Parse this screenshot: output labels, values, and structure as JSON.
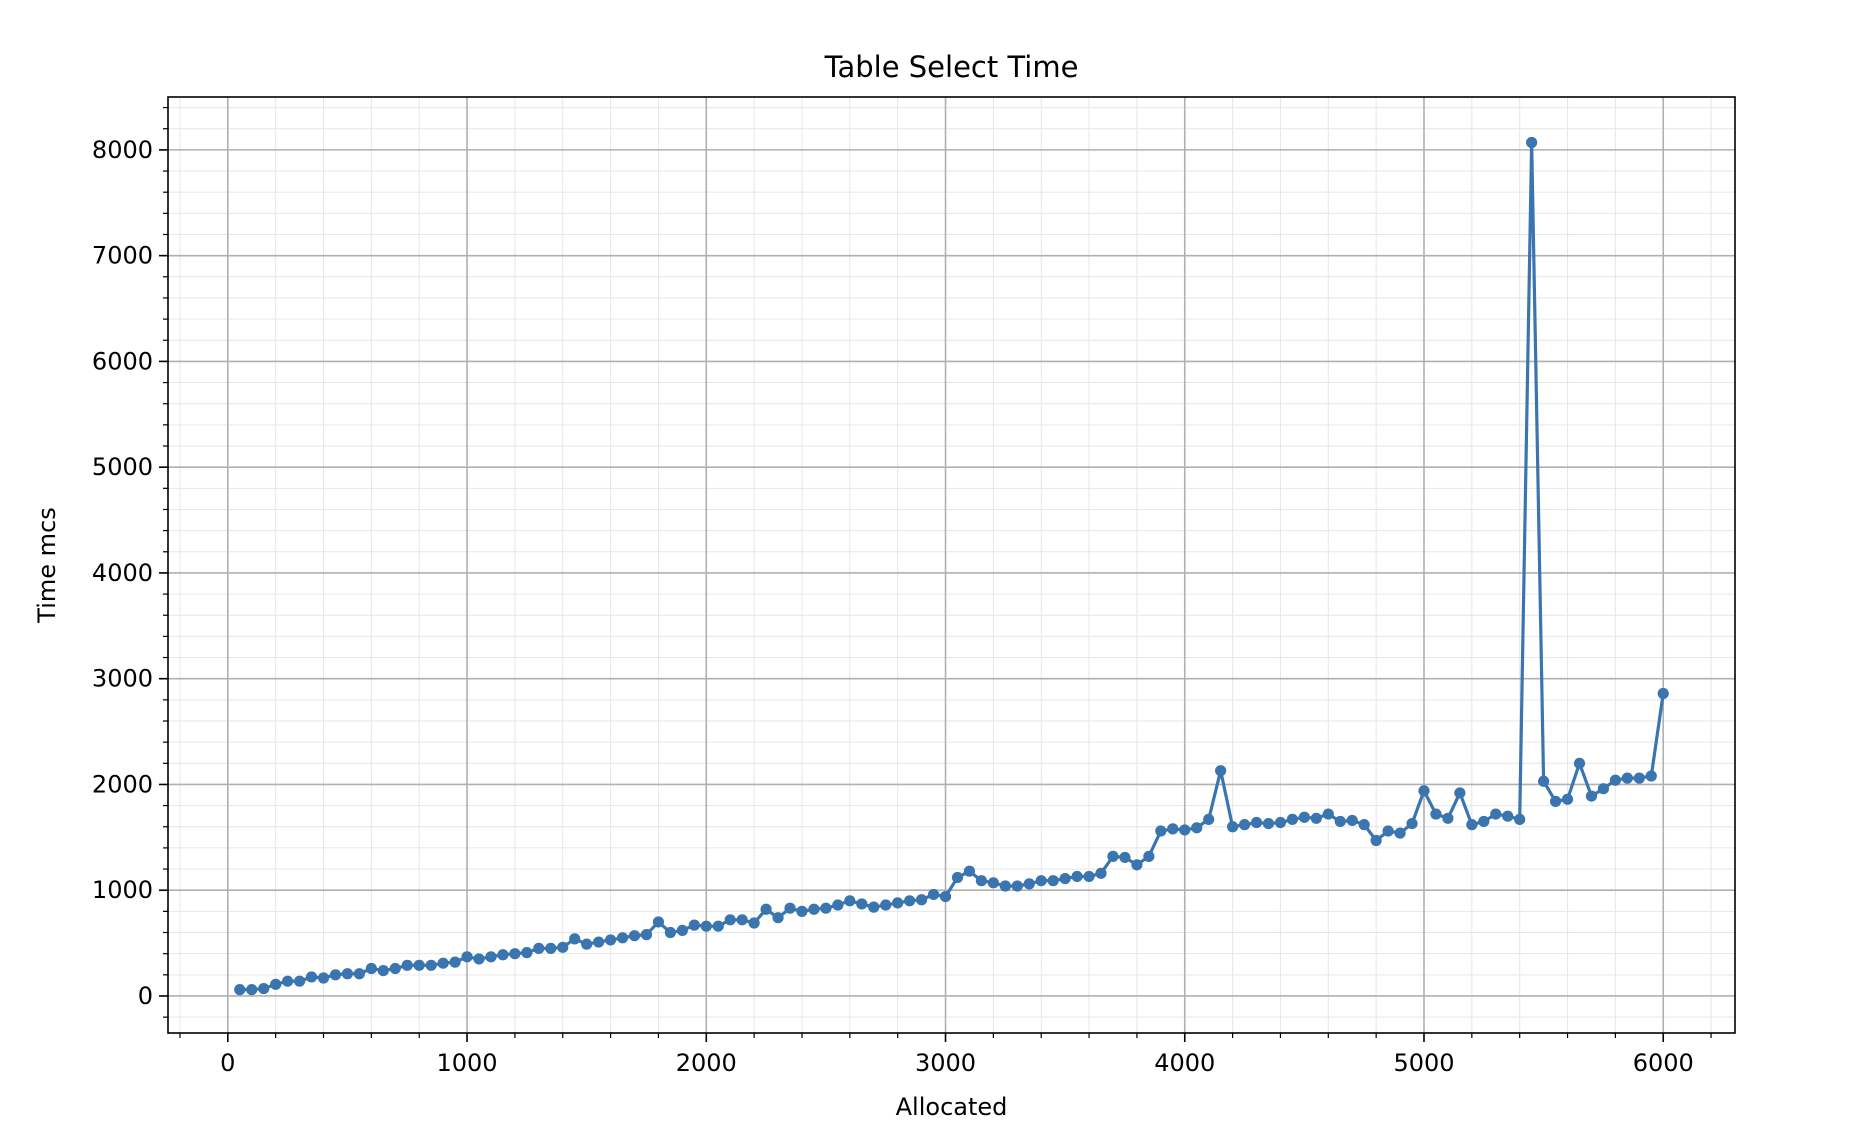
{
  "chart_data": {
    "type": "line",
    "title": "Table Select Time",
    "xlabel": "Allocated",
    "ylabel": "Time mcs",
    "xlim": [
      -250,
      6300
    ],
    "ylim": [
      -350,
      8500
    ],
    "xticks": [
      0,
      1000,
      2000,
      3000,
      4000,
      5000,
      6000
    ],
    "yticks": [
      0,
      1000,
      2000,
      3000,
      4000,
      5000,
      6000,
      7000,
      8000
    ],
    "x_minor_step": 200,
    "y_minor_step": 200,
    "grid": true,
    "minor_grid": true,
    "line_color": "#3a75af",
    "series": [
      {
        "x": [
          50,
          100,
          150,
          200,
          250,
          300,
          350,
          400,
          450,
          500,
          550,
          600,
          650,
          700,
          750,
          800,
          850,
          900,
          950,
          1000,
          1050,
          1100,
          1150,
          1200,
          1250,
          1300,
          1350,
          1400,
          1450,
          1500,
          1550,
          1600,
          1650,
          1700,
          1750,
          1800,
          1850,
          1900,
          1950,
          2000,
          2050,
          2100,
          2150,
          2200,
          2250,
          2300,
          2350,
          2400,
          2450,
          2500,
          2550,
          2600,
          2650,
          2700,
          2750,
          2800,
          2850,
          2900,
          2950,
          3000,
          3050,
          3100,
          3150,
          3200,
          3250,
          3300,
          3350,
          3400,
          3450,
          3500,
          3550,
          3600,
          3650,
          3700,
          3750,
          3800,
          3850,
          3900,
          3950,
          4000,
          4050,
          4100,
          4150,
          4200,
          4250,
          4300,
          4350,
          4400,
          4450,
          4500,
          4550,
          4600,
          4650,
          4700,
          4750,
          4800,
          4850,
          4900,
          4950,
          5000,
          5050,
          5100,
          5150,
          5200,
          5250,
          5300,
          5350,
          5400,
          5450,
          5500,
          5550,
          5600,
          5650,
          5700,
          5750,
          5800,
          5850,
          5900,
          5950,
          6000
        ],
        "y": [
          60,
          60,
          70,
          110,
          140,
          140,
          180,
          170,
          200,
          210,
          210,
          260,
          240,
          260,
          290,
          290,
          290,
          310,
          320,
          370,
          350,
          370,
          390,
          400,
          410,
          450,
          450,
          460,
          540,
          490,
          510,
          530,
          550,
          570,
          580,
          700,
          600,
          620,
          670,
          660,
          660,
          720,
          720,
          690,
          820,
          740,
          830,
          800,
          820,
          830,
          860,
          900,
          870,
          840,
          860,
          880,
          900,
          910,
          960,
          940,
          1120,
          1180,
          1090,
          1070,
          1040,
          1040,
          1060,
          1090,
          1090,
          1110,
          1130,
          1130,
          1160,
          1320,
          1310,
          1240,
          1320,
          1560,
          1580,
          1570,
          1590,
          1670,
          2130,
          1600,
          1620,
          1640,
          1630,
          1640,
          1670,
          1690,
          1680,
          1720,
          1650,
          1660,
          1620,
          1470,
          1560,
          1540,
          1630,
          1940,
          1720,
          1680,
          1920,
          1620,
          1650,
          1720,
          1700,
          1670,
          8070,
          2030,
          1840,
          1860,
          2200,
          1890,
          1960,
          2040,
          2060,
          2060,
          2080,
          2860
        ]
      }
    ]
  }
}
